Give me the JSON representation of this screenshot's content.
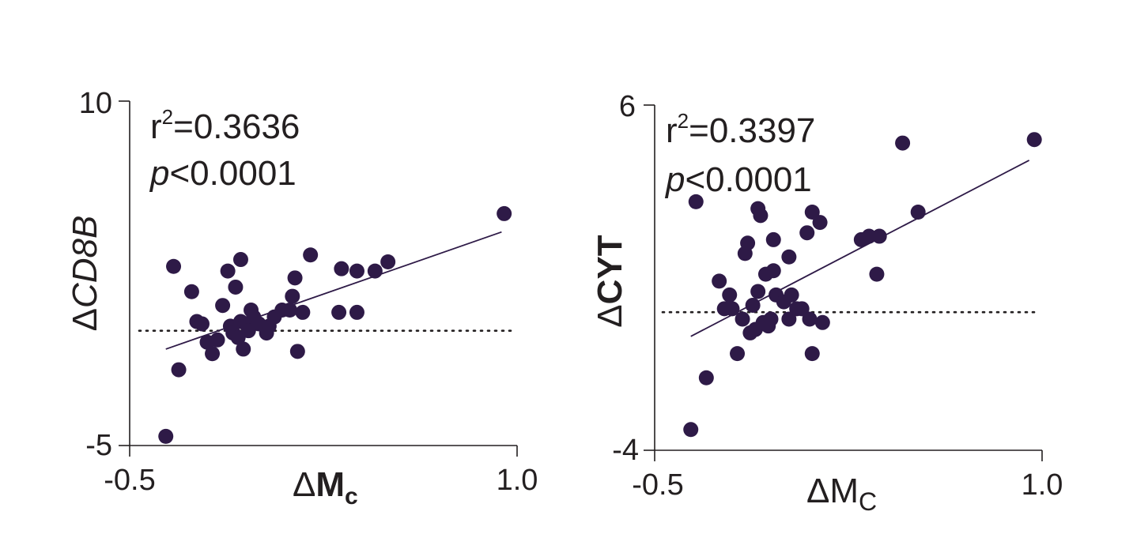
{
  "chart_data": [
    {
      "type": "scatter",
      "xlabel": "ΔMc",
      "ylabel": "ΔCD8B",
      "xlim": [
        -0.5,
        1.0
      ],
      "ylim": [
        -5,
        10
      ],
      "x_ticks": [
        "-0.5",
        "1.0"
      ],
      "y_ticks": [
        "10",
        "-5"
      ],
      "annotations": {
        "r2_label": "r",
        "r2_sup": "2",
        "r2_value": "=0.3636",
        "p_label": "p",
        "p_value": "<0.0001"
      },
      "reference_line_y": 0,
      "fit_line": {
        "x": [
          -0.36,
          0.94
        ],
        "y": [
          -0.8,
          4.3
        ]
      },
      "point_color": "#2e1a47",
      "points": [
        {
          "x": -0.36,
          "y": -4.6
        },
        {
          "x": -0.33,
          "y": 2.8
        },
        {
          "x": -0.31,
          "y": -1.7
        },
        {
          "x": -0.26,
          "y": 1.7
        },
        {
          "x": -0.24,
          "y": 0.4
        },
        {
          "x": -0.22,
          "y": 0.3
        },
        {
          "x": -0.2,
          "y": -0.5
        },
        {
          "x": -0.18,
          "y": -1.0
        },
        {
          "x": -0.16,
          "y": -0.4
        },
        {
          "x": -0.14,
          "y": 1.1
        },
        {
          "x": -0.12,
          "y": 2.6
        },
        {
          "x": -0.11,
          "y": 0.2
        },
        {
          "x": -0.1,
          "y": -0.1
        },
        {
          "x": -0.09,
          "y": 1.9
        },
        {
          "x": -0.08,
          "y": -0.3
        },
        {
          "x": -0.07,
          "y": 0.4
        },
        {
          "x": -0.07,
          "y": 3.1
        },
        {
          "x": -0.06,
          "y": -0.8
        },
        {
          "x": -0.05,
          "y": 0.3
        },
        {
          "x": -0.04,
          "y": 0.0
        },
        {
          "x": -0.03,
          "y": 0.9
        },
        {
          "x": -0.02,
          "y": 0.6
        },
        {
          "x": 0.0,
          "y": 0.3
        },
        {
          "x": 0.03,
          "y": -0.1
        },
        {
          "x": 0.04,
          "y": 0.2
        },
        {
          "x": 0.06,
          "y": 0.6
        },
        {
          "x": 0.09,
          "y": 0.9
        },
        {
          "x": 0.12,
          "y": 0.9
        },
        {
          "x": 0.13,
          "y": 1.5
        },
        {
          "x": 0.14,
          "y": 2.3
        },
        {
          "x": 0.15,
          "y": -0.9
        },
        {
          "x": 0.17,
          "y": 0.8
        },
        {
          "x": 0.2,
          "y": 3.3
        },
        {
          "x": 0.31,
          "y": 0.8
        },
        {
          "x": 0.32,
          "y": 2.7
        },
        {
          "x": 0.38,
          "y": 2.6
        },
        {
          "x": 0.38,
          "y": 0.8
        },
        {
          "x": 0.45,
          "y": 2.6
        },
        {
          "x": 0.5,
          "y": 3.0
        },
        {
          "x": 0.95,
          "y": 5.1
        }
      ]
    },
    {
      "type": "scatter",
      "xlabel": "ΔMc",
      "ylabel": "ΔCYT",
      "xlim": [
        -0.5,
        1.0
      ],
      "ylim": [
        -4,
        6
      ],
      "x_ticks": [
        "-0.5",
        "1.0"
      ],
      "y_ticks": [
        "6",
        "-4"
      ],
      "annotations": {
        "r2_label": "r",
        "r2_sup": "2",
        "r2_value": "=0.3397",
        "p_label": "p",
        "p_value": "<0.0001"
      },
      "reference_line_y": 0,
      "fit_line": {
        "x": [
          -0.36,
          0.95
        ],
        "y": [
          -0.7,
          4.4
        ]
      },
      "point_color": "#2e1a47",
      "points": [
        {
          "x": -0.36,
          "y": -3.4
        },
        {
          "x": -0.34,
          "y": 3.2
        },
        {
          "x": -0.3,
          "y": -1.9
        },
        {
          "x": -0.25,
          "y": 0.9
        },
        {
          "x": -0.23,
          "y": 0.1
        },
        {
          "x": -0.21,
          "y": 0.5
        },
        {
          "x": -0.2,
          "y": 0.1
        },
        {
          "x": -0.18,
          "y": -1.2
        },
        {
          "x": -0.16,
          "y": -0.2
        },
        {
          "x": -0.15,
          "y": 1.7
        },
        {
          "x": -0.14,
          "y": 2.0
        },
        {
          "x": -0.13,
          "y": -0.6
        },
        {
          "x": -0.12,
          "y": 0.2
        },
        {
          "x": -0.11,
          "y": -0.5
        },
        {
          "x": -0.1,
          "y": 0.6
        },
        {
          "x": -0.1,
          "y": 3.0
        },
        {
          "x": -0.09,
          "y": 2.8
        },
        {
          "x": -0.08,
          "y": -0.3
        },
        {
          "x": -0.07,
          "y": 1.1
        },
        {
          "x": -0.06,
          "y": -0.4
        },
        {
          "x": -0.05,
          "y": -0.2
        },
        {
          "x": -0.04,
          "y": 1.2
        },
        {
          "x": -0.04,
          "y": 2.1
        },
        {
          "x": -0.03,
          "y": 0.5
        },
        {
          "x": 0.0,
          "y": 0.3
        },
        {
          "x": 0.02,
          "y": 1.6
        },
        {
          "x": 0.02,
          "y": -0.2
        },
        {
          "x": 0.03,
          "y": 0.5
        },
        {
          "x": 0.05,
          "y": 0.1
        },
        {
          "x": 0.07,
          "y": 0.1
        },
        {
          "x": 0.09,
          "y": 2.3
        },
        {
          "x": 0.11,
          "y": 2.9
        },
        {
          "x": 0.14,
          "y": 2.6
        },
        {
          "x": 0.1,
          "y": -0.2
        },
        {
          "x": 0.11,
          "y": -1.2
        },
        {
          "x": 0.15,
          "y": -0.3
        },
        {
          "x": 0.3,
          "y": 2.1
        },
        {
          "x": 0.33,
          "y": 2.2
        },
        {
          "x": 0.36,
          "y": 1.1
        },
        {
          "x": 0.37,
          "y": 2.2
        },
        {
          "x": 0.46,
          "y": 4.9
        },
        {
          "x": 0.52,
          "y": 2.9
        },
        {
          "x": 0.97,
          "y": 5.0
        }
      ]
    }
  ]
}
